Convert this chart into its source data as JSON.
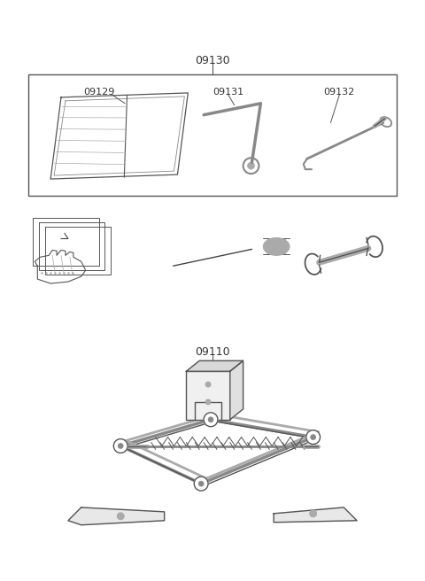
{
  "background_color": "#ffffff",
  "fig_width": 4.8,
  "fig_height": 6.56,
  "dpi": 100,
  "line_color": "#555555",
  "text_color": "#333333",
  "gray1": "#888888",
  "gray2": "#aaaaaa",
  "gray3": "#cccccc",
  "gray_dark": "#444444"
}
